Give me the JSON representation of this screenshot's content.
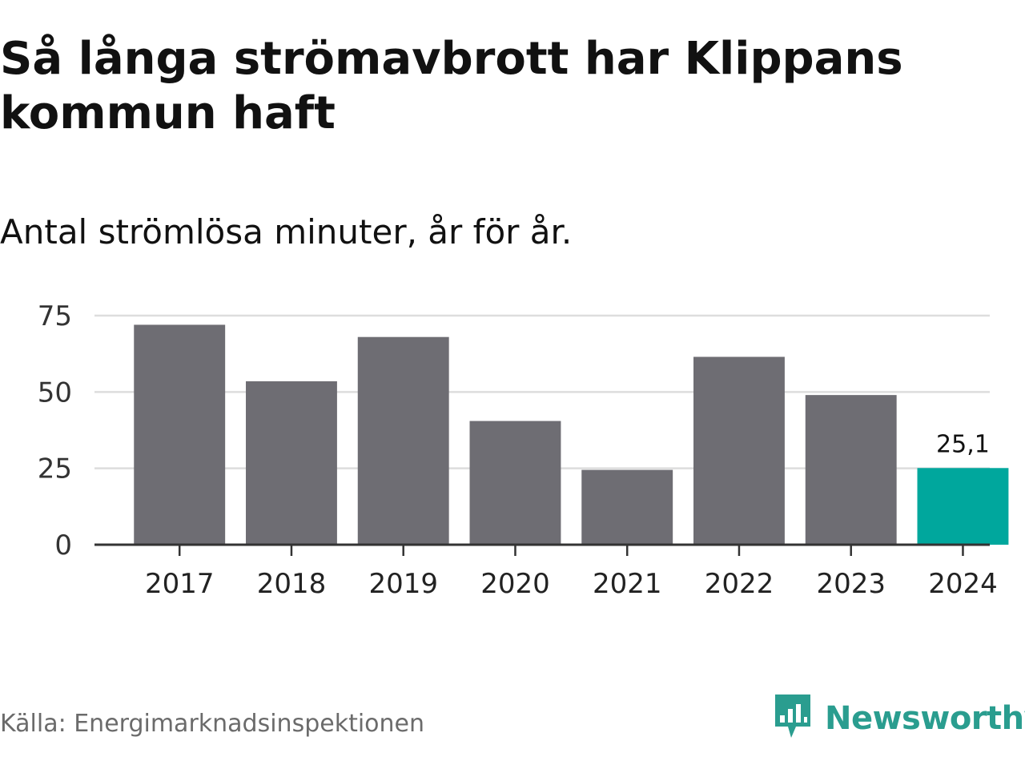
{
  "title": "Så långa strömavbrott har Klippans kommun haft",
  "subtitle": "Antal strömlösa minuter, år för år.",
  "source": "Källa: Energimarknadsinspektionen",
  "brand": {
    "name": "Newsworthy",
    "icon": "newsworthy-logo-icon"
  },
  "colors": {
    "bar": "#6e6d73",
    "highlight": "#00a79d",
    "grid": "#dddddd",
    "axis": "#333333",
    "brand": "#2a9d8f"
  },
  "chart_data": {
    "type": "bar",
    "title": "Så långa strömavbrott har Klippans kommun haft",
    "subtitle": "Antal strömlösa minuter, år för år.",
    "xlabel": "",
    "ylabel": "",
    "categories": [
      "2017",
      "2018",
      "2019",
      "2020",
      "2021",
      "2022",
      "2023",
      "2024"
    ],
    "values": [
      72,
      53.5,
      68,
      40.5,
      24.5,
      61.5,
      49,
      25.1
    ],
    "ylim": [
      0,
      75
    ],
    "yticks": [
      "0",
      "25",
      "50",
      "75"
    ],
    "ytick_values": [
      0,
      25,
      50,
      75
    ],
    "grid": true,
    "highlight_index": 7,
    "data_labels": {
      "2024": "25,1"
    }
  }
}
